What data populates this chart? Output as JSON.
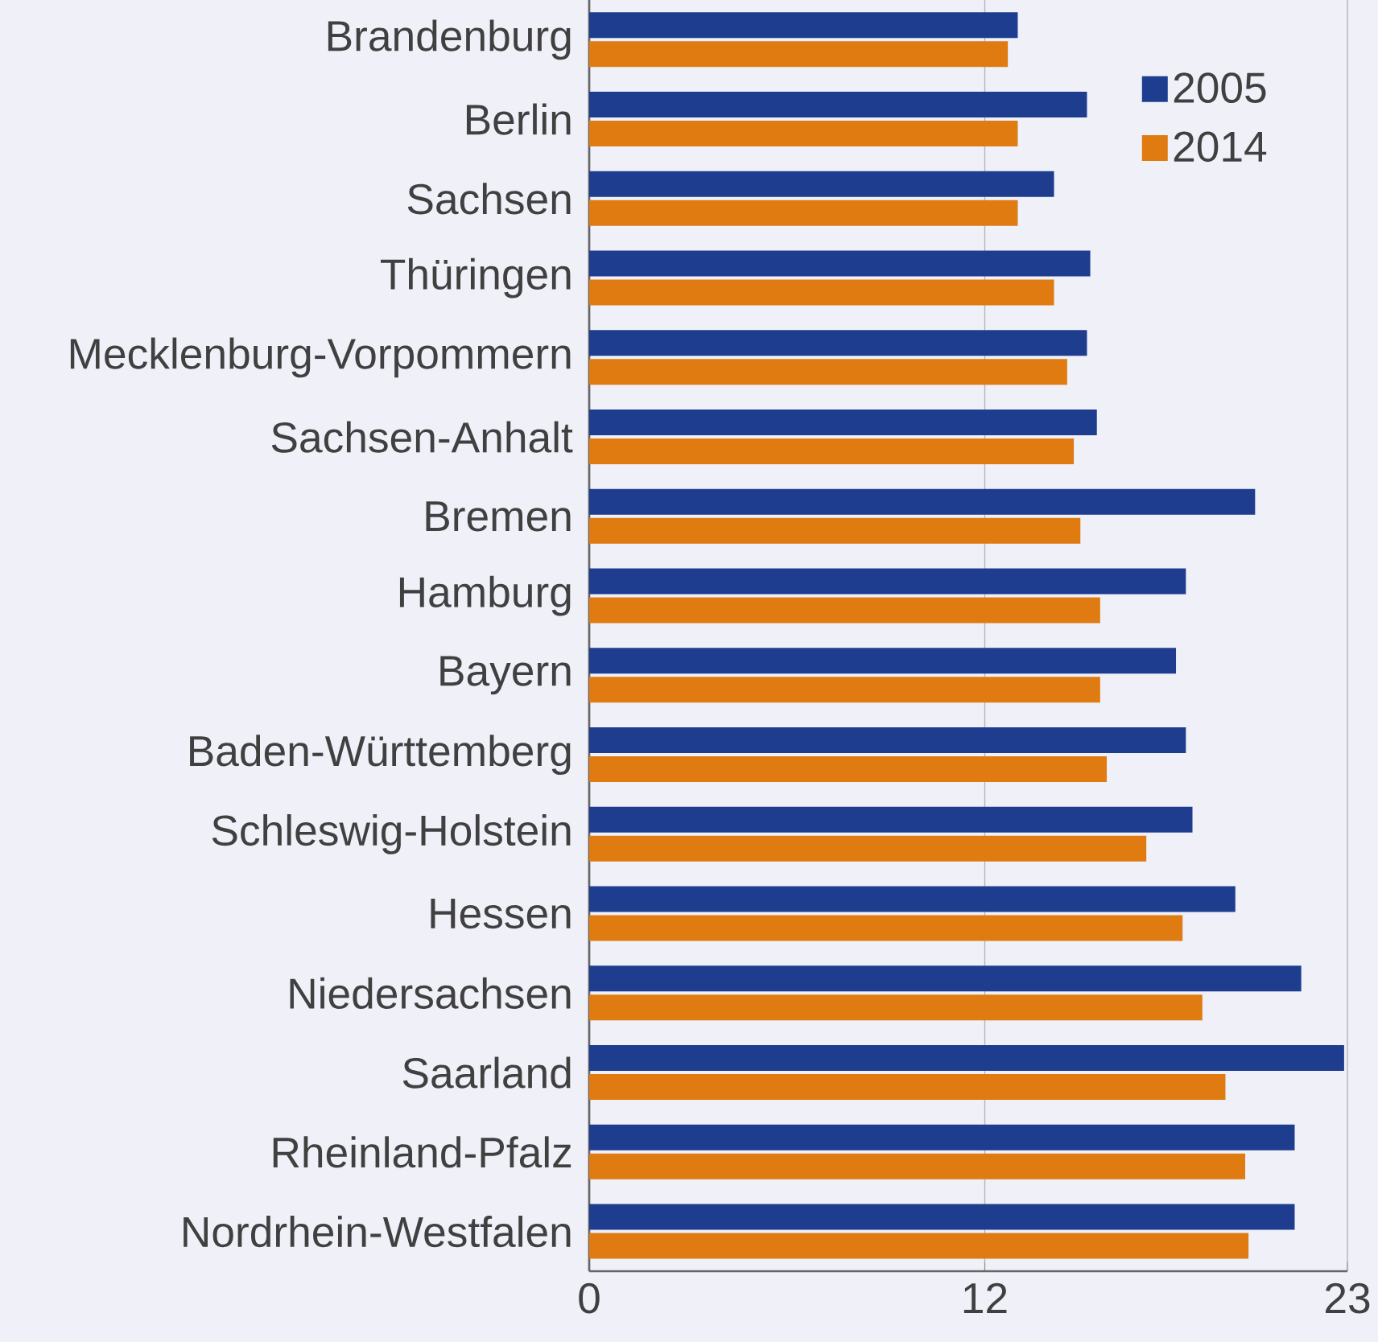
{
  "chart_data": {
    "type": "bar",
    "orientation": "horizontal",
    "categories": [
      "Brandenburg",
      "Berlin",
      "Sachsen",
      "Thüringen",
      "Mecklenburg-Vorpommern",
      "Sachsen-Anhalt",
      "Bremen",
      "Hamburg",
      "Bayern",
      "Baden-Württemberg",
      "Schleswig-Holstein",
      "Hessen",
      "Niedersachsen",
      "Saarland",
      "Rheinland-Pfalz",
      "Nordrhein-Westfalen"
    ],
    "series": [
      {
        "name": "2005",
        "color": "#1f3d8f",
        "values": [
          13.0,
          15.1,
          14.1,
          15.2,
          15.1,
          15.4,
          20.2,
          18.1,
          17.8,
          18.1,
          18.3,
          19.6,
          21.6,
          22.9,
          21.4,
          21.4
        ]
      },
      {
        "name": "2014",
        "color": "#e07b12",
        "values": [
          12.7,
          13.0,
          13.0,
          14.1,
          14.5,
          14.7,
          14.9,
          15.5,
          15.5,
          15.7,
          16.9,
          18.0,
          18.6,
          19.3,
          19.9,
          20.0
        ]
      }
    ],
    "xlim": [
      0,
      23
    ],
    "xticks": [
      0,
      12,
      23
    ],
    "grid": "x",
    "legend": "top right"
  }
}
